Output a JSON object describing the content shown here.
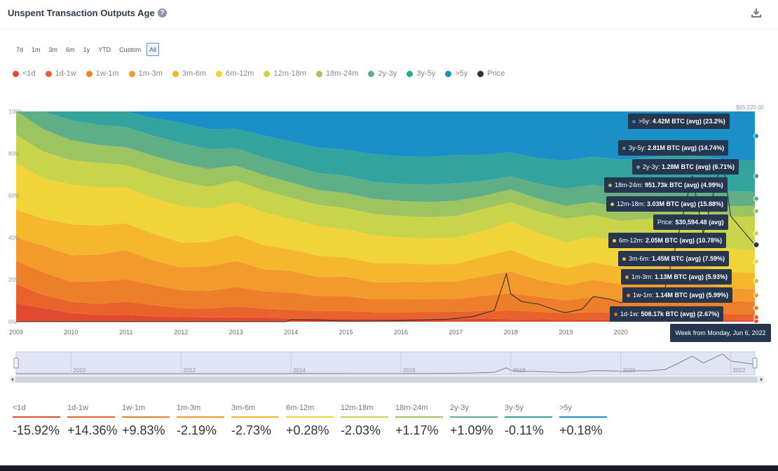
{
  "header": {
    "title": "Unspent Transaction Outputs Age",
    "help_icon": "?",
    "download_icon": "download-icon"
  },
  "ranges": [
    "7d",
    "1m",
    "3m",
    "6m",
    "1y",
    "YTD",
    "Custom",
    "All"
  ],
  "active_range": "All",
  "legend": [
    {
      "label": "<1d",
      "color": "#e04a2f"
    },
    {
      "label": "1d-1w",
      "color": "#e8632c"
    },
    {
      "label": "1w-1m",
      "color": "#ee7f2a"
    },
    {
      "label": "1m-3m",
      "color": "#f29a2c"
    },
    {
      "label": "3m-6m",
      "color": "#f4b72d"
    },
    {
      "label": "6m-12m",
      "color": "#f1d33a"
    },
    {
      "label": "12m-18m",
      "color": "#c9d44a"
    },
    {
      "label": "18m-24m",
      "color": "#9cc461"
    },
    {
      "label": "2y-3y",
      "color": "#5fae86"
    },
    {
      "label": "3y-5y",
      "color": "#33a39d"
    },
    {
      "label": ">5y",
      "color": "#1a8fc8"
    },
    {
      "label": "Price",
      "color": "#333333"
    }
  ],
  "tooltip": {
    "rows": [
      {
        "label": ">5y:",
        "value": "4.42M BTC (avg) (23.2%)",
        "color": "#1a8fc8"
      },
      {
        "label": "3y-5y:",
        "value": "2.81M BTC (avg) (14.74%)",
        "color": "#33a39d"
      },
      {
        "label": "2y-3y:",
        "value": "1.28M BTC (avg) (6.71%)",
        "color": "#5fae86"
      },
      {
        "label": "18m-24m:",
        "value": "951.73k BTC (avg) (4.99%)",
        "color": "#9cc461"
      },
      {
        "label": "12m-18m:",
        "value": "3.03M BTC (avg) (15.88%)",
        "color": "#c9d44a"
      },
      {
        "label": "Price:",
        "value": "$30,594.48 (avg)",
        "color": ""
      },
      {
        "label": "6m-12m:",
        "value": "2.05M BTC (avg) (10.78%)",
        "color": "#f1d33a"
      },
      {
        "label": "3m-6m:",
        "value": "1.45M BTC (avg) (7.59%)",
        "color": "#f4b72d"
      },
      {
        "label": "1m-3m:",
        "value": "1.13M BTC (avg) (5.93%)",
        "color": "#f29a2c"
      },
      {
        "label": "1w-1m:",
        "value": "1.14M BTC (avg) (5.99%)",
        "color": "#ee7f2a"
      },
      {
        "label": "1d-1w:",
        "value": "508.17k BTC (avg) (2.67%)",
        "color": "#e8632c"
      }
    ],
    "week": "Week from Monday, Jun 6, 2022"
  },
  "stats": [
    {
      "label": "<1d",
      "value": "-15.92%",
      "color": "#e04a2f"
    },
    {
      "label": "1d-1w",
      "value": "+14.36%",
      "color": "#e8632c"
    },
    {
      "label": "1w-1m",
      "value": "+9.83%",
      "color": "#ee7f2a"
    },
    {
      "label": "1m-3m",
      "value": "-2.19%",
      "color": "#f29a2c"
    },
    {
      "label": "3m-6m",
      "value": "-2.73%",
      "color": "#f4b72d"
    },
    {
      "label": "6m-12m",
      "value": "+0.28%",
      "color": "#f1d33a"
    },
    {
      "label": "12m-18m",
      "value": "-2.03%",
      "color": "#c9d44a"
    },
    {
      "label": "18m-24m",
      "value": "+1.17%",
      "color": "#9cc461"
    },
    {
      "label": "2y-3y",
      "value": "+1.09%",
      "color": "#5fae86"
    },
    {
      "label": "3y-5y",
      "value": "-0.11%",
      "color": "#33a39d"
    },
    {
      "label": ">5y",
      "value": "+0.18%",
      "color": "#1a8fc8"
    }
  ],
  "chart_data": {
    "type": "area",
    "stacked": "percent",
    "x": [
      2009,
      2009.5,
      2010,
      2010.5,
      2011,
      2011.5,
      2012,
      2012.5,
      2013,
      2013.5,
      2014,
      2014.5,
      2015,
      2015.5,
      2016,
      2016.5,
      2017,
      2017.5,
      2018,
      2018.5,
      2019,
      2019.5,
      2020,
      2020.5,
      2021,
      2021.5,
      2022,
      2022.44
    ],
    "x_tick_labels": [
      "2009",
      "2010",
      "2011",
      "2012",
      "2013",
      "2014",
      "2015",
      "2016",
      "2017",
      "2018",
      "2019",
      "2020"
    ],
    "y_tick_labels": [
      "0%",
      "20%",
      "40%",
      "60%",
      "80%",
      "100%"
    ],
    "ylim": [
      0,
      100
    ],
    "right_axis_top_label": "$65,220.00",
    "series": [
      {
        "name": "<1d",
        "values": [
          8,
          6,
          4,
          3,
          3,
          2.5,
          2,
          2,
          2,
          2,
          1.5,
          1.5,
          1.5,
          1.5,
          1.5,
          1.5,
          1.5,
          1.5,
          1.2,
          1.2,
          1,
          1,
          1,
          1,
          1,
          1,
          0.8,
          0.8
        ]
      },
      {
        "name": "1d-1w",
        "values": [
          8,
          6,
          5,
          5,
          6,
          5,
          4,
          4,
          5,
          4,
          4,
          3.5,
          3.5,
          3,
          3,
          3,
          3,
          3.5,
          4,
          3.5,
          3,
          3.5,
          3,
          3,
          3,
          3,
          2.8,
          2.7
        ]
      },
      {
        "name": "1w-1m",
        "values": [
          10,
          10,
          9,
          10,
          10,
          9,
          8,
          8,
          9,
          8,
          8,
          7,
          7,
          6,
          6,
          6,
          6,
          7,
          8,
          7,
          6,
          7,
          6,
          6,
          6.5,
          6.5,
          6,
          6
        ]
      },
      {
        "name": "1m-3m",
        "values": [
          10,
          12,
          12,
          12,
          13,
          11,
          10,
          11,
          12,
          10,
          10,
          9,
          9,
          8,
          8,
          8,
          8,
          9,
          10,
          8,
          7,
          8,
          7,
          7,
          7,
          7,
          6,
          5.9
        ]
      },
      {
        "name": "3m-6m",
        "values": [
          12,
          12,
          14,
          13,
          12,
          12,
          11,
          11,
          12,
          11,
          10,
          10,
          9,
          9,
          9,
          8,
          8,
          9,
          10,
          9,
          8,
          8,
          8,
          8,
          8,
          8,
          7.8,
          7.6
        ]
      },
      {
        "name": "6m-12m",
        "values": [
          20,
          18,
          18,
          17,
          16,
          16,
          16,
          15,
          15,
          15,
          14,
          14,
          13,
          13,
          12,
          12,
          12,
          12,
          13,
          13,
          12,
          12,
          11,
          11,
          11,
          11,
          11,
          10.8
        ]
      },
      {
        "name": "12m-18m",
        "values": [
          12,
          12,
          11,
          11,
          10,
          11,
          11,
          10,
          10,
          10,
          10,
          10,
          10,
          10,
          10,
          10,
          10,
          10,
          9,
          10,
          11,
          10,
          10,
          11,
          12,
          14,
          15,
          15.9
        ]
      },
      {
        "name": "18m-24m",
        "values": [
          10,
          10,
          9,
          8,
          8,
          8,
          8,
          8,
          7,
          7,
          7,
          7,
          7,
          7,
          7,
          7,
          7,
          6,
          6,
          6,
          6,
          6,
          6,
          6,
          6,
          5,
          5,
          5
        ]
      },
      {
        "name": "2y-3y",
        "values": [
          0,
          8,
          9,
          9,
          9,
          9,
          9,
          9,
          8,
          8,
          8,
          8,
          8,
          8,
          8,
          8,
          8,
          7,
          6,
          7,
          8,
          8,
          8,
          8,
          8,
          7,
          7,
          6.7
        ]
      },
      {
        "name": "3y-5y",
        "values": [
          0,
          0,
          4,
          6,
          7,
          8,
          9,
          9,
          9,
          10,
          11,
          12,
          12,
          13,
          13,
          13,
          13,
          12,
          11,
          12,
          13,
          13,
          14,
          14,
          14,
          14,
          14.8,
          14.7
        ]
      },
      {
        "name": ">5y",
        "values": [
          0,
          0,
          0,
          0,
          0,
          3,
          5,
          8,
          8,
          11,
          14,
          17,
          18,
          20,
          21,
          21,
          20,
          20,
          19,
          22,
          23,
          21,
          22,
          21,
          20,
          21,
          22.8,
          23.2
        ]
      }
    ],
    "price": {
      "name": "Price",
      "x": [
        2009,
        2013.9,
        2014,
        2014.5,
        2015,
        2016,
        2016.8,
        2017.3,
        2017.7,
        2017.92,
        2018,
        2018.2,
        2018.5,
        2018.9,
        2019,
        2019.3,
        2019.5,
        2019.8,
        2020,
        2020.2,
        2020.5,
        2020.8,
        2021,
        2021.3,
        2021.5,
        2021.85,
        2022,
        2022.44
      ],
      "values": [
        0,
        0,
        800,
        600,
        250,
        400,
        900,
        2000,
        4500,
        19000,
        11000,
        8000,
        7000,
        4000,
        3600,
        5000,
        10000,
        9000,
        7500,
        9000,
        9500,
        13000,
        30000,
        58000,
        35000,
        65000,
        42000,
        30594
      ]
    },
    "grid": false,
    "legend_position": "top-left"
  }
}
